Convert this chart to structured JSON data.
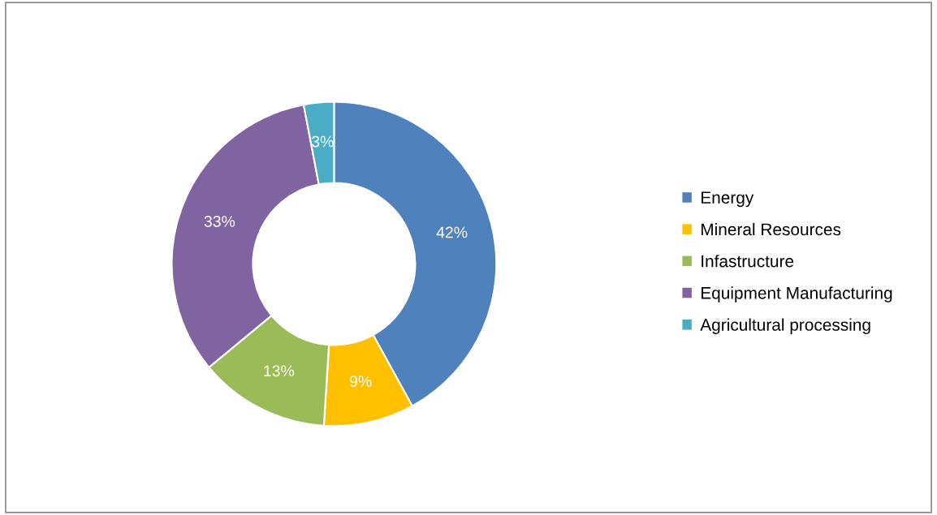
{
  "chart_data": {
    "type": "donut",
    "categories": [
      "Energy",
      "Mineral Resources",
      "Infastructure",
      "Equipment Manufacturing",
      "Agricultural processing"
    ],
    "values": [
      42,
      9,
      13,
      33,
      3
    ],
    "colors": [
      "#4f81bd",
      "#ffc000",
      "#9bbb59",
      "#8064a2",
      "#4bacc6"
    ],
    "value_labels": [
      "42%",
      "9%",
      "13%",
      "33%",
      "3%"
    ],
    "legend": "right"
  }
}
